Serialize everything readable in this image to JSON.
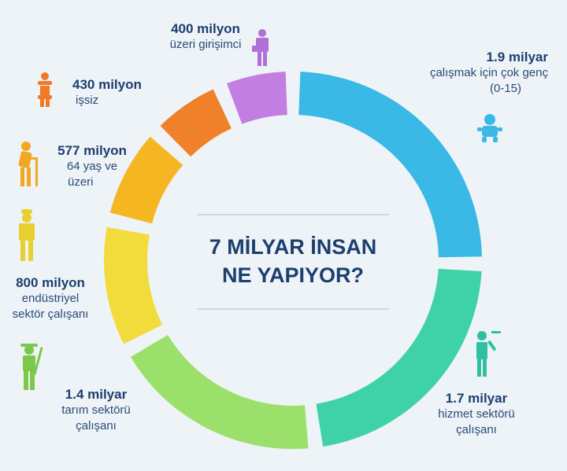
{
  "chart_data": {
    "type": "pie",
    "title_line1": "7 MİLYAR İNSAN",
    "title_line2": "NE YAPIYOR?",
    "slices": [
      {
        "value": 1.9,
        "amount": "1.9 milyar",
        "lines": [
          "çalışmak için çok genç",
          "(0-15)"
        ],
        "color": "#3ab8e6",
        "icon": "baby-icon",
        "icon_color": "#3ab8e6"
      },
      {
        "value": 1.7,
        "amount": "1.7 milyar",
        "lines": [
          "hizmet sektörü",
          "çalışanı"
        ],
        "color": "#3fd2a6",
        "icon": "waiter-icon",
        "icon_color": "#30c0a0"
      },
      {
        "value": 1.4,
        "amount": "1.4 milyar",
        "lines": [
          "tarım sektörü",
          "çalışanı"
        ],
        "color": "#9be06a",
        "icon": "farmer-icon",
        "icon_color": "#7cc84a"
      },
      {
        "value": 0.8,
        "amount": "800 milyon",
        "lines": [
          "endüstriyel",
          "sektör çalışanı"
        ],
        "color": "#f2dc3c",
        "icon": "worker-icon",
        "icon_color": "#e8d030"
      },
      {
        "value": 0.577,
        "amount": "577 milyon",
        "lines": [
          "64 yaş ve",
          "üzeri"
        ],
        "color": "#f5b622",
        "icon": "elderly-icon",
        "icon_color": "#f0a820"
      },
      {
        "value": 0.43,
        "amount": "430 milyon",
        "lines": [
          "işsiz"
        ],
        "color": "#f0802a",
        "icon": "unemployed-icon",
        "icon_color": "#f07a28"
      },
      {
        "value": 0.4,
        "amount": "400 milyon",
        "lines": [
          "üzeri girişimci"
        ],
        "color": "#c27ee0",
        "icon": "entrepreneur-icon",
        "icon_color": "#b070d8"
      }
    ]
  }
}
